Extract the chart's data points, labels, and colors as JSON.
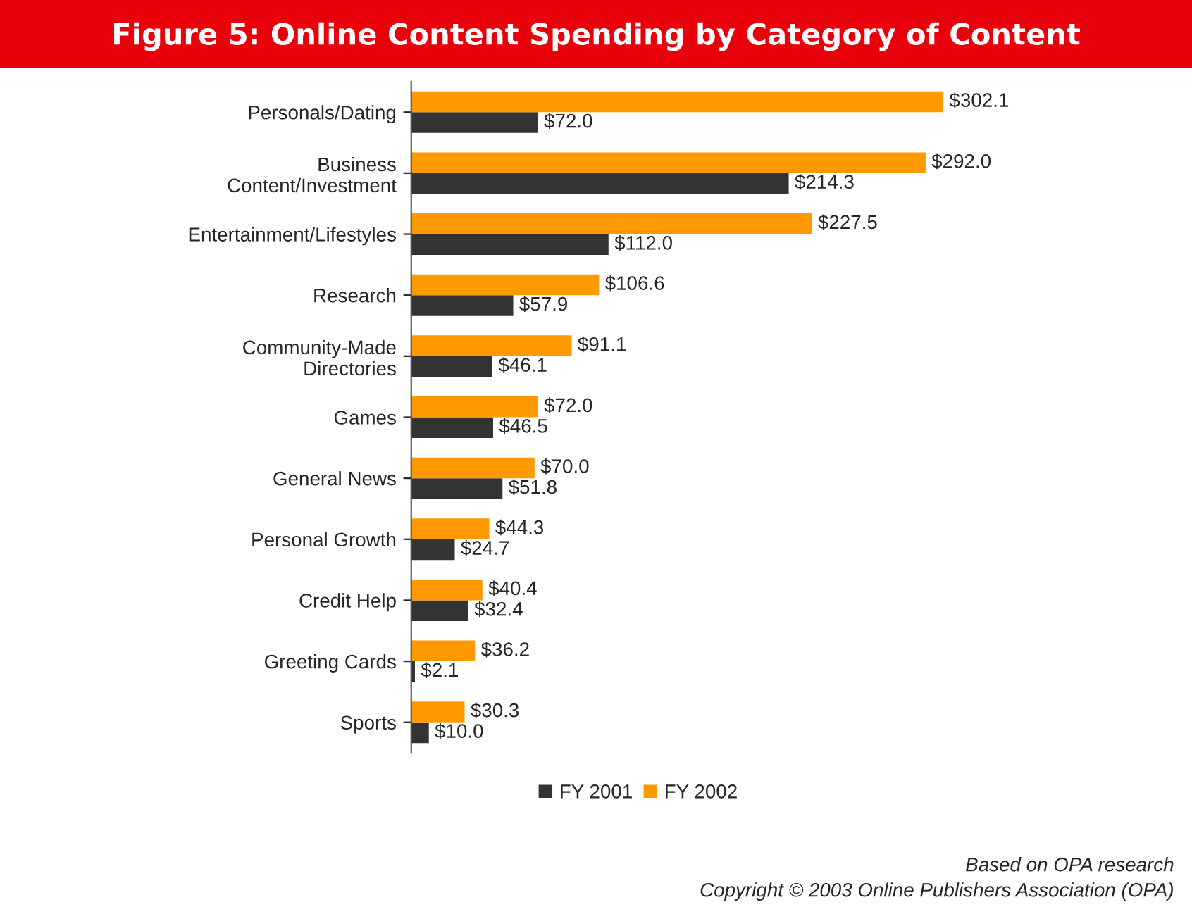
{
  "chart_data": {
    "type": "bar",
    "orientation": "horizontal",
    "title": "Figure 5: Online Content Spending by Category of Content",
    "categories": [
      "Personals/Dating",
      "Business\nContent/Investment",
      "Entertainment/Lifestyles",
      "Research",
      "Community-Made\nDirectories",
      "Games",
      "General News",
      "Personal Growth",
      "Credit Help",
      "Greeting Cards",
      "Sports"
    ],
    "series": [
      {
        "name": "FY 2001",
        "color": "#333333",
        "values": [
          72.0,
          214.3,
          112.0,
          57.9,
          46.1,
          46.5,
          51.8,
          24.7,
          32.4,
          2.1,
          10.0
        ],
        "value_labels": [
          "$72.0",
          "$214.3",
          "$112.0",
          "$57.9",
          "$46.1",
          "$46.5",
          "$51.8",
          "$24.7",
          "$32.4",
          "$2.1",
          "$10.0"
        ]
      },
      {
        "name": "FY 2002",
        "color": "#ff9900",
        "values": [
          302.1,
          292.0,
          227.5,
          106.6,
          91.1,
          72.0,
          70.0,
          44.3,
          40.4,
          36.2,
          30.3
        ],
        "value_labels": [
          "$302.1",
          "$292.0",
          "$227.5",
          "$106.6",
          "$91.1",
          "$72.0",
          "$70.0",
          "$44.3",
          "$40.4",
          "$36.2",
          "$30.3"
        ]
      }
    ],
    "legend": "bottom",
    "grid": false,
    "tick_labels": "y",
    "annotations": [
      "Based on OPA research",
      "Copyright © 2003 Online Publishers Association (OPA)"
    ]
  }
}
